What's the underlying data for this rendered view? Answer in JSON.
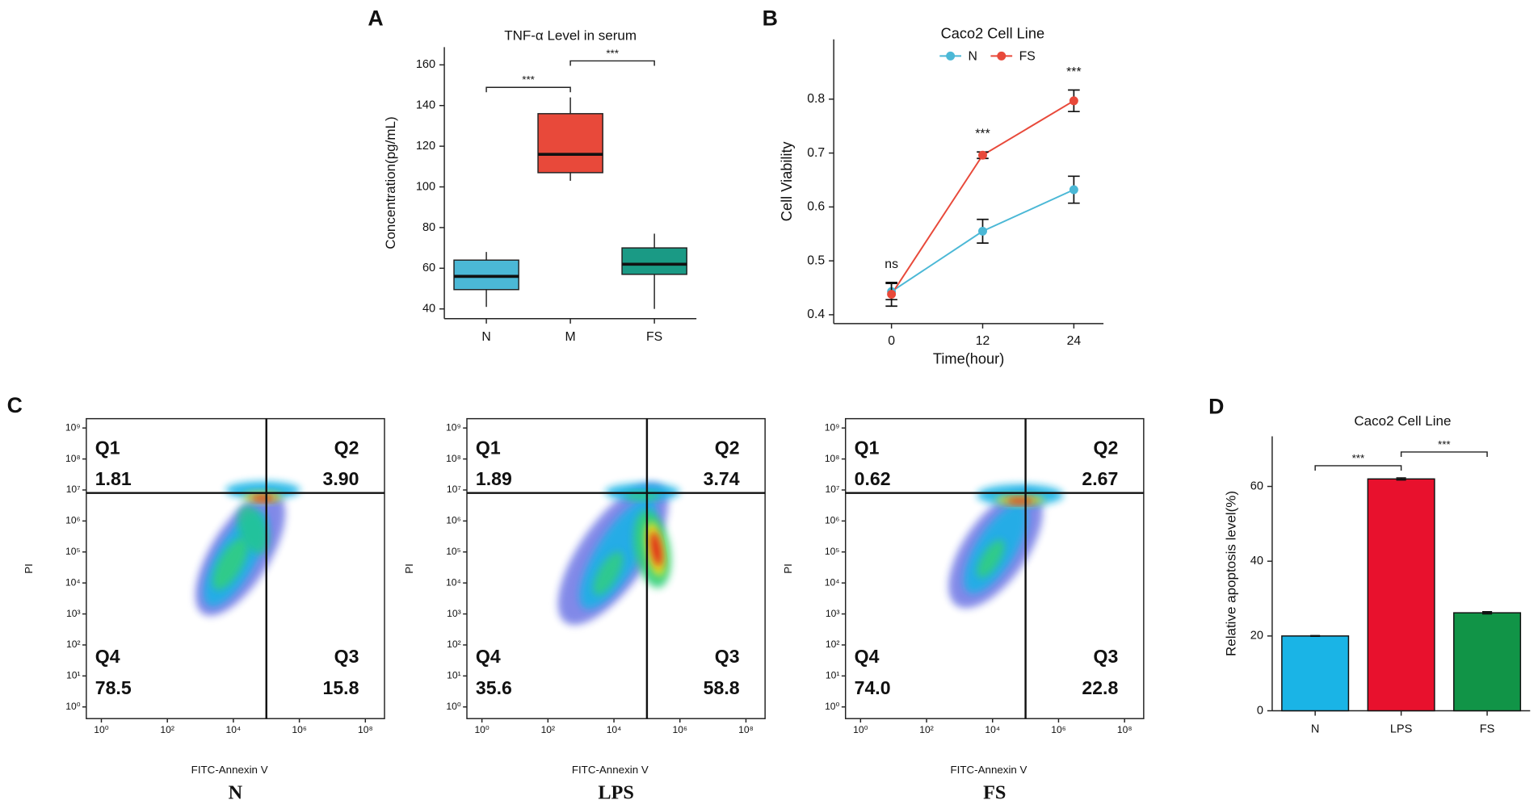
{
  "chart_data": [
    {
      "type": "box",
      "panel": "A",
      "title": "TNF-α Level in serum",
      "ylabel": "Concentration(pg/mL)",
      "categories": [
        "N",
        "M",
        "FS"
      ],
      "colors": [
        "#4bb8d6",
        "#e8493a",
        "#1a9a85"
      ],
      "stats": {
        "min": [
          41,
          103,
          40
        ],
        "q1": [
          49.5,
          107,
          57
        ],
        "median": [
          56,
          116,
          62
        ],
        "q3": [
          64,
          136,
          70
        ],
        "max": [
          68,
          144,
          77
        ]
      },
      "ylim": [
        35.2,
        168.7
      ],
      "yticks": [
        40,
        60,
        80,
        100,
        120,
        140,
        160
      ],
      "annotations": [
        "***",
        "***"
      ]
    },
    {
      "type": "line",
      "panel": "B",
      "title": "Caco2 Cell Line",
      "xlabel": "Time(hour)",
      "ylabel": "Cell Viability",
      "x": [
        0,
        12,
        24
      ],
      "series": [
        {
          "name": "N",
          "color": "#4bb8d6",
          "values": [
            0.443,
            0.555,
            0.632
          ],
          "errors": [
            0.015,
            0.022,
            0.025
          ]
        },
        {
          "name": "FS",
          "color": "#e8493a",
          "values": [
            0.438,
            0.696,
            0.797
          ],
          "errors": [
            0.022,
            0.006,
            0.02
          ]
        }
      ],
      "point_labels": [
        "ns",
        "***",
        "***"
      ],
      "xlim": [
        -7.6,
        27.9
      ],
      "xticks": [
        0,
        12,
        24
      ],
      "ylim": [
        0.3836,
        0.911
      ],
      "yticks": [
        0.4,
        0.5,
        0.6,
        0.7,
        0.8
      ],
      "legend": "top"
    },
    {
      "type": "density",
      "panel": "C",
      "title": "N",
      "xlabel": "FITC-Annexin V",
      "ylabel": "PI",
      "log_scale": true,
      "quadrants": [
        "Q1",
        "Q2",
        "Q3",
        "Q4"
      ],
      "values": [
        1.81,
        3.9,
        15.8,
        78.5
      ],
      "value_labels": [
        "1.81",
        "3.90",
        "15.8",
        "78.5"
      ],
      "gate": [
        100000,
        8000000
      ],
      "xlim": [
        0.35,
        380000000
      ],
      "ylim": [
        0.42,
        2000000000
      ],
      "xticks": [
        {
          "value": 1,
          "label": "10⁰"
        },
        {
          "value": 100,
          "label": "10²"
        },
        {
          "value": 10000,
          "label": "10⁴"
        },
        {
          "value": 1000000,
          "label": "10⁶"
        },
        {
          "value": 100000000,
          "label": "10⁸"
        }
      ],
      "yticks": [
        {
          "value": 1,
          "label": "10⁰"
        },
        {
          "value": 10,
          "label": "10¹"
        },
        {
          "value": 100,
          "label": "10²"
        },
        {
          "value": 1000,
          "label": "10³"
        },
        {
          "value": 10000,
          "label": "10⁴"
        },
        {
          "value": 100000,
          "label": "10⁵"
        },
        {
          "value": 1000000,
          "label": "10⁶"
        },
        {
          "value": 10000000,
          "label": "10⁷"
        },
        {
          "value": 100000000,
          "label": "10⁸"
        },
        {
          "value": 1000000000,
          "label": "10⁹"
        }
      ]
    },
    {
      "type": "density",
      "title": "LPS",
      "xlabel": "FITC-Annexin V",
      "ylabel": "PI",
      "log_scale": true,
      "quadrants": [
        "Q1",
        "Q2",
        "Q3",
        "Q4"
      ],
      "values": [
        1.89,
        3.74,
        58.8,
        35.6
      ],
      "value_labels": [
        "1.89",
        "3.74",
        "58.8",
        "35.6"
      ],
      "gate": [
        100000,
        8000000
      ],
      "xlim": [
        0.35,
        380000000
      ],
      "ylim": [
        0.42,
        2000000000
      ],
      "xticks": [
        {
          "value": 1,
          "label": "10⁰"
        },
        {
          "value": 100,
          "label": "10²"
        },
        {
          "value": 10000,
          "label": "10⁴"
        },
        {
          "value": 1000000,
          "label": "10⁶"
        },
        {
          "value": 100000000,
          "label": "10⁸"
        }
      ],
      "yticks": [
        {
          "value": 1,
          "label": "10⁰"
        },
        {
          "value": 10,
          "label": "10¹"
        },
        {
          "value": 100,
          "label": "10²"
        },
        {
          "value": 1000,
          "label": "10³"
        },
        {
          "value": 10000,
          "label": "10⁴"
        },
        {
          "value": 100000,
          "label": "10⁵"
        },
        {
          "value": 1000000,
          "label": "10⁶"
        },
        {
          "value": 10000000,
          "label": "10⁷"
        },
        {
          "value": 100000000,
          "label": "10⁸"
        },
        {
          "value": 1000000000,
          "label": "10⁹"
        }
      ]
    },
    {
      "type": "density",
      "title": "FS",
      "xlabel": "FITC-Annexin V",
      "ylabel": "PI",
      "log_scale": true,
      "quadrants": [
        "Q1",
        "Q2",
        "Q3",
        "Q4"
      ],
      "values": [
        0.62,
        2.67,
        22.8,
        74
      ],
      "value_labels": [
        "0.62",
        "2.67",
        "22.8",
        "74.0"
      ],
      "gate": [
        100000,
        8000000
      ],
      "xlim": [
        0.35,
        380000000
      ],
      "ylim": [
        0.42,
        2000000000
      ],
      "xticks": [
        {
          "value": 1,
          "label": "10⁰"
        },
        {
          "value": 100,
          "label": "10²"
        },
        {
          "value": 10000,
          "label": "10⁴"
        },
        {
          "value": 1000000,
          "label": "10⁶"
        },
        {
          "value": 100000000,
          "label": "10⁸"
        }
      ],
      "yticks": [
        {
          "value": 1,
          "label": "10⁰"
        },
        {
          "value": 10,
          "label": "10¹"
        },
        {
          "value": 100,
          "label": "10²"
        },
        {
          "value": 1000,
          "label": "10³"
        },
        {
          "value": 10000,
          "label": "10⁴"
        },
        {
          "value": 100000,
          "label": "10⁵"
        },
        {
          "value": 1000000,
          "label": "10⁶"
        },
        {
          "value": 10000000,
          "label": "10⁷"
        },
        {
          "value": 100000000,
          "label": "10⁸"
        },
        {
          "value": 1000000000,
          "label": "10⁹"
        }
      ]
    },
    {
      "type": "bar",
      "panel": "D",
      "title": "Caco2 Cell Line",
      "ylabel": "Relative apoptosis level(%)",
      "categories": [
        "N",
        "LPS",
        "FS"
      ],
      "values": [
        20,
        62,
        26.2
      ],
      "errors": [
        0.1,
        0.3,
        0.3
      ],
      "colors": [
        "#1ab4e6",
        "#e8112d",
        "#119447"
      ],
      "ylim": [
        0,
        73.4
      ],
      "yticks": [
        0,
        20,
        40,
        60
      ],
      "annotations": [
        "***",
        "***"
      ]
    }
  ]
}
